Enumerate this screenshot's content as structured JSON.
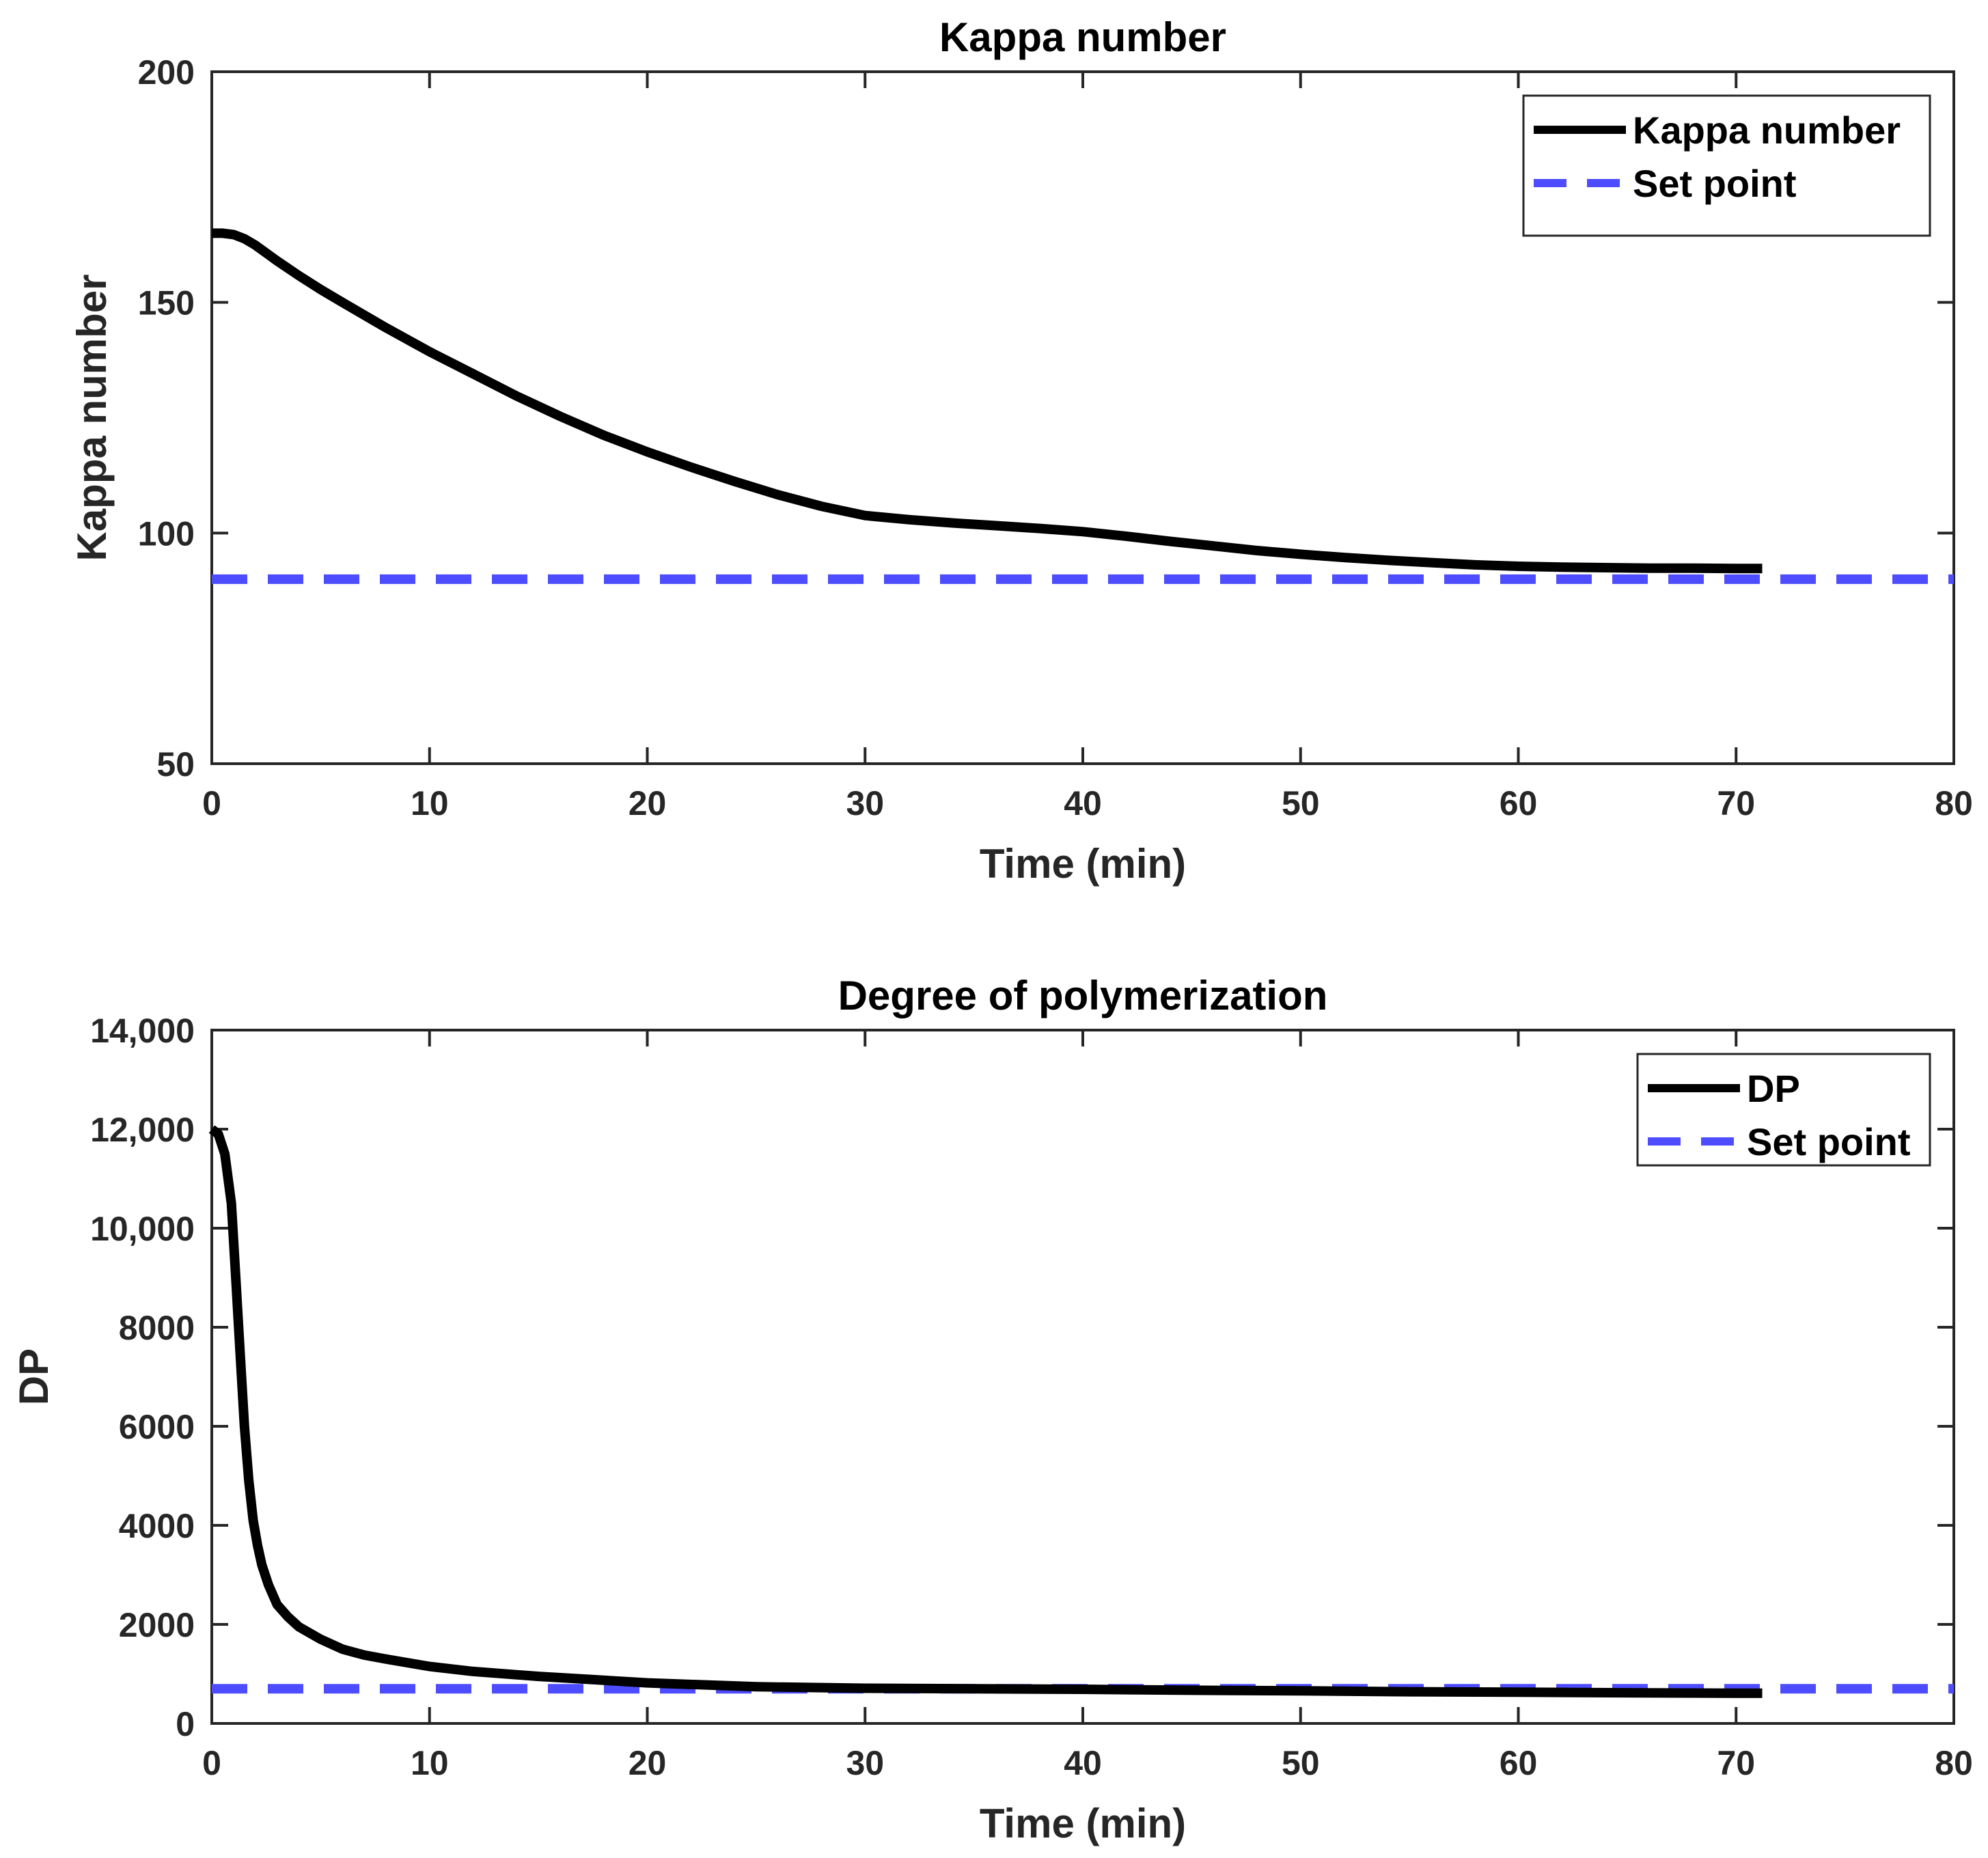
{
  "chart_data": [
    {
      "type": "line",
      "title": "Kappa number",
      "xlabel": "Time (min)",
      "ylabel": "Kappa number",
      "xlim": [
        0,
        80
      ],
      "ylim": [
        50,
        200
      ],
      "xticks": [
        0,
        10,
        20,
        30,
        40,
        50,
        60,
        70,
        80
      ],
      "xtick_labels": [
        "0",
        "10",
        "20",
        "30",
        "40",
        "50",
        "60",
        "70",
        "80"
      ],
      "yticks": [
        50,
        100,
        150,
        200
      ],
      "ytick_labels": [
        "50",
        "100",
        "150",
        "200"
      ],
      "legend_position": "top-right",
      "series": [
        {
          "name": "Kappa number",
          "color": "#000000",
          "style": "solid",
          "x": [
            0,
            0.5,
            1,
            1.5,
            2,
            3,
            4,
            5,
            6,
            8,
            10,
            12,
            14,
            16,
            18,
            20,
            22,
            24,
            26,
            28,
            30,
            32,
            34,
            36,
            38,
            40,
            42,
            44,
            46,
            48,
            50,
            52,
            54,
            56,
            58,
            60,
            62,
            64,
            66,
            68,
            70,
            71.2
          ],
          "values": [
            165,
            165,
            164.7,
            163.8,
            162.4,
            159,
            155.8,
            152.8,
            150,
            144.5,
            139.3,
            134.5,
            129.7,
            125.3,
            121.2,
            117.6,
            114.3,
            111.2,
            108.3,
            105.8,
            103.8,
            102.9,
            102.2,
            101.6,
            101,
            100.3,
            99.3,
            98.2,
            97.2,
            96.2,
            95.4,
            94.7,
            94.1,
            93.6,
            93.1,
            92.8,
            92.6,
            92.5,
            92.4,
            92.4,
            92.3,
            92.3
          ]
        },
        {
          "name": "Set point",
          "color": "#4d4dff",
          "style": "dashed",
          "x": [
            0,
            80
          ],
          "values": [
            90,
            90
          ]
        }
      ]
    },
    {
      "type": "line",
      "title": "Degree of polymerization",
      "xlabel": "Time (min)",
      "ylabel": "DP",
      "xlim": [
        0,
        80
      ],
      "ylim": [
        0,
        14000
      ],
      "xticks": [
        0,
        10,
        20,
        30,
        40,
        50,
        60,
        70,
        80
      ],
      "xtick_labels": [
        "0",
        "10",
        "20",
        "30",
        "40",
        "50",
        "60",
        "70",
        "80"
      ],
      "yticks": [
        0,
        2000,
        4000,
        6000,
        8000,
        10000,
        12000,
        14000
      ],
      "ytick_labels": [
        "0",
        "2000",
        "4000",
        "6000",
        "8000",
        "10,000",
        "12,000",
        "14,000"
      ],
      "legend_position": "top-right",
      "series": [
        {
          "name": "DP",
          "color": "#000000",
          "style": "solid",
          "x": [
            0,
            0.3,
            0.6,
            0.9,
            1.1,
            1.3,
            1.5,
            1.7,
            1.9,
            2.1,
            2.3,
            2.6,
            3,
            3.5,
            4,
            5,
            6,
            7,
            8,
            10,
            12,
            15,
            20,
            25,
            30,
            35,
            40,
            45,
            50,
            55,
            60,
            65,
            70,
            71.2
          ],
          "values": [
            12000,
            11900,
            11500,
            10500,
            9000,
            7500,
            6000,
            4900,
            4100,
            3600,
            3200,
            2800,
            2400,
            2150,
            1950,
            1700,
            1500,
            1380,
            1300,
            1150,
            1050,
            950,
            820,
            740,
            710,
            700,
            690,
            670,
            660,
            640,
            630,
            620,
            610,
            610
          ]
        },
        {
          "name": "Set point",
          "color": "#4d4dff",
          "style": "dashed",
          "x": [
            0,
            80
          ],
          "values": [
            700,
            700
          ]
        }
      ]
    }
  ]
}
